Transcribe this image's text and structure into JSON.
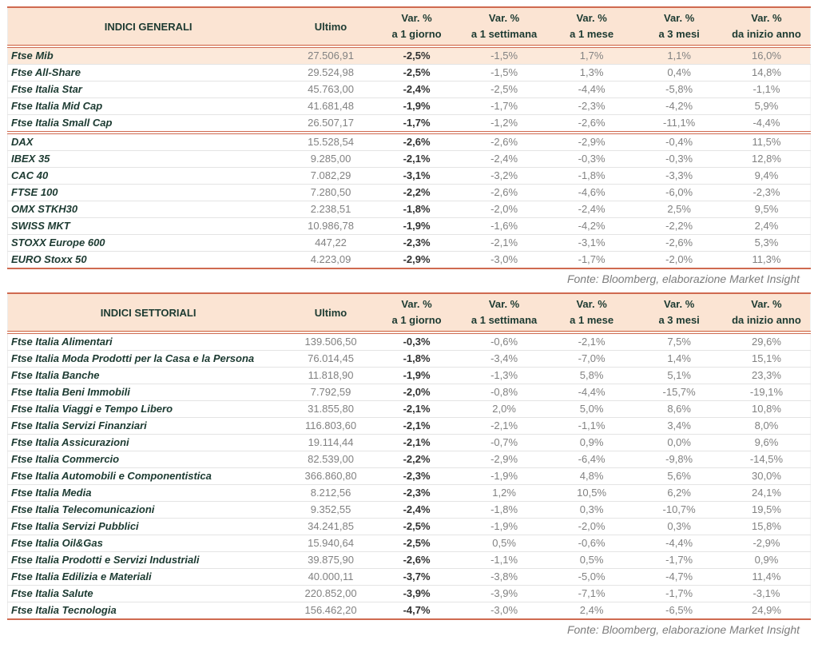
{
  "colors": {
    "header_bg": "#fbe4d3",
    "highlight_row_bg": "#fce9da",
    "rule": "#cf6a50",
    "row_divider": "#e4e4e4",
    "title_text": "#1c3a31",
    "value_text": "#828282",
    "bold_value_text": "#303030",
    "source_text": "#7d7d7d"
  },
  "source_note": "Fonte: Bloomberg, elaborazione Market Insight",
  "column_headers": {
    "ultimo": "Ultimo",
    "vars": [
      {
        "id": "var-1-giorno",
        "line1": "Var. %",
        "line2": "a 1 giorno"
      },
      {
        "id": "var-1-settimana",
        "line1": "Var. %",
        "line2": "a 1 settimana"
      },
      {
        "id": "var-1-mese",
        "line1": "Var. %",
        "line2": "a 1 mese"
      },
      {
        "id": "var-3-mesi",
        "line1": "Var. %",
        "line2": "a 3 mesi"
      },
      {
        "id": "var-inizio-anno",
        "line1": "Var. %",
        "line2": "da inizio anno"
      }
    ]
  },
  "tables": [
    {
      "id": "indici-generali",
      "title": "INDICI GENERALI",
      "groups": [
        {
          "rows": [
            {
              "name": "Ftse Mib",
              "ultimo": "27.506,91",
              "vars": [
                "-2,5%",
                "-1,5%",
                "1,7%",
                "1,1%",
                "16,0%"
              ],
              "highlight": true
            },
            {
              "name": "Ftse All-Share",
              "ultimo": "29.524,98",
              "vars": [
                "-2,5%",
                "-1,5%",
                "1,3%",
                "0,4%",
                "14,8%"
              ]
            },
            {
              "name": "Ftse Italia Star",
              "ultimo": "45.763,00",
              "vars": [
                "-2,4%",
                "-2,5%",
                "-4,4%",
                "-5,8%",
                "-1,1%"
              ]
            },
            {
              "name": "Ftse Italia Mid Cap",
              "ultimo": "41.681,48",
              "vars": [
                "-1,9%",
                "-1,7%",
                "-2,3%",
                "-4,2%",
                "5,9%"
              ]
            },
            {
              "name": "Ftse Italia Small Cap",
              "ultimo": "26.507,17",
              "vars": [
                "-1,7%",
                "-1,2%",
                "-2,6%",
                "-11,1%",
                "-4,4%"
              ]
            }
          ]
        },
        {
          "rows": [
            {
              "name": "DAX",
              "ultimo": "15.528,54",
              "vars": [
                "-2,6%",
                "-2,6%",
                "-2,9%",
                "-0,4%",
                "11,5%"
              ]
            },
            {
              "name": "IBEX 35",
              "ultimo": "9.285,00",
              "vars": [
                "-2,1%",
                "-2,4%",
                "-0,3%",
                "-0,3%",
                "12,8%"
              ]
            },
            {
              "name": "CAC 40",
              "ultimo": "7.082,29",
              "vars": [
                "-3,1%",
                "-3,2%",
                "-1,8%",
                "-3,3%",
                "9,4%"
              ]
            },
            {
              "name": "FTSE 100",
              "ultimo": "7.280,50",
              "vars": [
                "-2,2%",
                "-2,6%",
                "-4,6%",
                "-6,0%",
                "-2,3%"
              ]
            },
            {
              "name": "OMX STKH30",
              "ultimo": "2.238,51",
              "vars": [
                "-1,8%",
                "-2,0%",
                "-2,4%",
                "2,5%",
                "9,5%"
              ]
            },
            {
              "name": "SWISS MKT",
              "ultimo": "10.986,78",
              "vars": [
                "-1,9%",
                "-1,6%",
                "-4,2%",
                "-2,2%",
                "2,4%"
              ]
            },
            {
              "name": "STOXX Europe 600",
              "ultimo": "447,22",
              "vars": [
                "-2,3%",
                "-2,1%",
                "-3,1%",
                "-2,6%",
                "5,3%"
              ]
            },
            {
              "name": "EURO Stoxx 50",
              "ultimo": "4.223,09",
              "vars": [
                "-2,9%",
                "-3,0%",
                "-1,7%",
                "-2,0%",
                "11,3%"
              ]
            }
          ]
        }
      ]
    },
    {
      "id": "indici-settoriali",
      "title": "INDICI SETTORIALI",
      "groups": [
        {
          "rows": [
            {
              "name": "Ftse Italia Alimentari",
              "ultimo": "139.506,50",
              "vars": [
                "-0,3%",
                "-0,6%",
                "-2,1%",
                "7,5%",
                "29,6%"
              ]
            },
            {
              "name": "Ftse Italia Moda Prodotti per la Casa e la Persona",
              "ultimo": "76.014,45",
              "vars": [
                "-1,8%",
                "-3,4%",
                "-7,0%",
                "1,4%",
                "15,1%"
              ]
            },
            {
              "name": "Ftse Italia Banche",
              "ultimo": "11.818,90",
              "vars": [
                "-1,9%",
                "-1,3%",
                "5,8%",
                "5,1%",
                "23,3%"
              ]
            },
            {
              "name": "Ftse Italia Beni Immobili",
              "ultimo": "7.792,59",
              "vars": [
                "-2,0%",
                "-0,8%",
                "-4,4%",
                "-15,7%",
                "-19,1%"
              ]
            },
            {
              "name": "Ftse Italia Viaggi e Tempo Libero",
              "ultimo": "31.855,80",
              "vars": [
                "-2,1%",
                "2,0%",
                "5,0%",
                "8,6%",
                "10,8%"
              ]
            },
            {
              "name": "Ftse Italia Servizi Finanziari",
              "ultimo": "116.803,60",
              "vars": [
                "-2,1%",
                "-2,1%",
                "-1,1%",
                "3,4%",
                "8,0%"
              ]
            },
            {
              "name": "Ftse Italia Assicurazioni",
              "ultimo": "19.114,44",
              "vars": [
                "-2,1%",
                "-0,7%",
                "0,9%",
                "0,0%",
                "9,6%"
              ]
            },
            {
              "name": "Ftse Italia Commercio",
              "ultimo": "82.539,00",
              "vars": [
                "-2,2%",
                "-2,9%",
                "-6,4%",
                "-9,8%",
                "-14,5%"
              ]
            },
            {
              "name": "Ftse Italia Automobili e Componentistica",
              "ultimo": "366.860,80",
              "vars": [
                "-2,3%",
                "-1,9%",
                "4,8%",
                "5,6%",
                "30,0%"
              ]
            },
            {
              "name": "Ftse Italia Media",
              "ultimo": "8.212,56",
              "vars": [
                "-2,3%",
                "1,2%",
                "10,5%",
                "6,2%",
                "24,1%"
              ]
            },
            {
              "name": "Ftse Italia Telecomunicazioni",
              "ultimo": "9.352,55",
              "vars": [
                "-2,4%",
                "-1,8%",
                "0,3%",
                "-10,7%",
                "19,5%"
              ]
            },
            {
              "name": "Ftse Italia Servizi Pubblici",
              "ultimo": "34.241,85",
              "vars": [
                "-2,5%",
                "-1,9%",
                "-2,0%",
                "0,3%",
                "15,8%"
              ]
            },
            {
              "name": "Ftse Italia Oil&Gas",
              "ultimo": "15.940,64",
              "vars": [
                "-2,5%",
                "0,5%",
                "-0,6%",
                "-4,4%",
                "-2,9%"
              ]
            },
            {
              "name": "Ftse Italia Prodotti e Servizi Industriali",
              "ultimo": "39.875,90",
              "vars": [
                "-2,6%",
                "-1,1%",
                "0,5%",
                "-1,7%",
                "0,9%"
              ]
            },
            {
              "name": "Ftse Italia Edilizia e Materiali",
              "ultimo": "40.000,11",
              "vars": [
                "-3,7%",
                "-3,8%",
                "-5,0%",
                "-4,7%",
                "11,4%"
              ]
            },
            {
              "name": "Ftse Italia Salute",
              "ultimo": "220.852,00",
              "vars": [
                "-3,9%",
                "-3,9%",
                "-7,1%",
                "-1,7%",
                "-3,1%"
              ]
            },
            {
              "name": "Ftse Italia Tecnologia",
              "ultimo": "156.462,20",
              "vars": [
                "-4,7%",
                "-3,0%",
                "2,4%",
                "-6,5%",
                "24,9%"
              ]
            }
          ]
        }
      ]
    }
  ]
}
